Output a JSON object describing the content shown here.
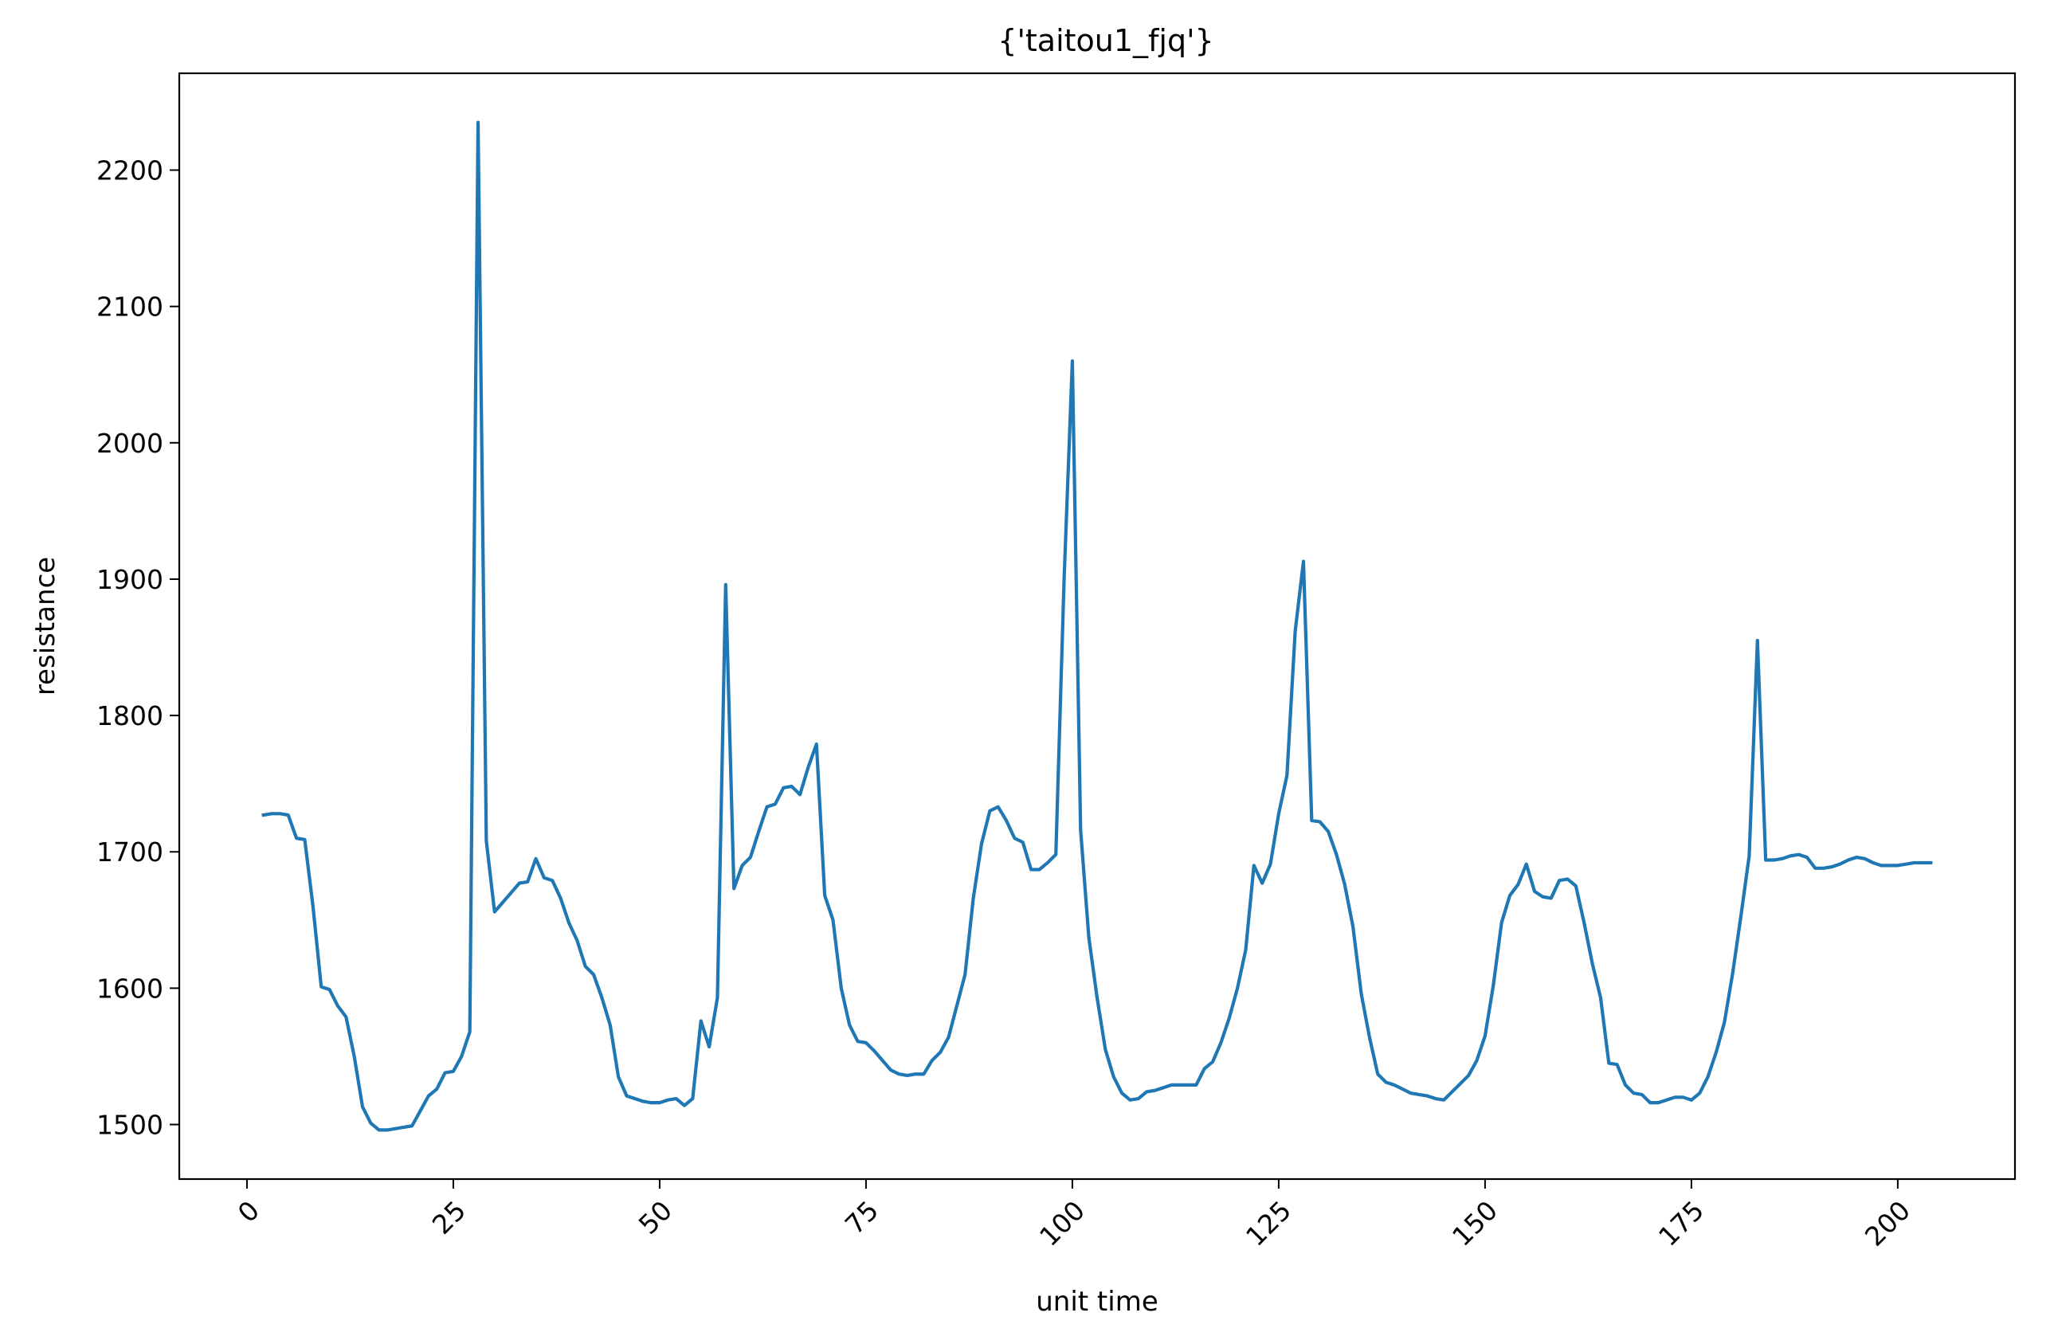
{
  "chart_data": {
    "type": "line",
    "title": "{'taitou1_fjq'}",
    "xlabel": "unit time",
    "ylabel": "resistance",
    "xlim": [
      -8.2,
      214.2
    ],
    "ylim": [
      1460,
      2271
    ],
    "x_ticks": [
      0,
      25,
      50,
      75,
      100,
      125,
      150,
      175,
      200
    ],
    "y_ticks": [
      1500,
      1600,
      1700,
      1800,
      1900,
      2000,
      2100,
      2200
    ],
    "x_tick_rotation": 45,
    "grid": false,
    "legend": "none",
    "series": [
      {
        "color": "#1f77b4",
        "x": [
          2,
          3,
          4,
          5,
          6,
          7,
          8,
          9,
          10,
          11,
          12,
          13,
          14,
          15,
          16,
          17,
          18,
          19,
          20,
          21,
          22,
          23,
          24,
          25,
          26,
          27,
          28,
          29,
          30,
          31,
          32,
          33,
          34,
          35,
          36,
          37,
          38,
          39,
          40,
          41,
          42,
          43,
          44,
          45,
          46,
          47,
          48,
          49,
          50,
          51,
          52,
          53,
          54,
          55,
          56,
          57,
          58,
          59,
          60,
          61,
          62,
          63,
          64,
          65,
          66,
          67,
          68,
          69,
          70,
          71,
          72,
          73,
          74,
          75,
          76,
          77,
          78,
          79,
          80,
          81,
          82,
          83,
          84,
          85,
          86,
          87,
          88,
          89,
          90,
          91,
          92,
          93,
          94,
          95,
          96,
          97,
          98,
          99,
          100,
          101,
          102,
          103,
          104,
          105,
          106,
          107,
          108,
          109,
          110,
          111,
          112,
          113,
          114,
          115,
          116,
          117,
          118,
          119,
          120,
          121,
          122,
          123,
          124,
          125,
          126,
          127,
          128,
          129,
          130,
          131,
          132,
          133,
          134,
          135,
          136,
          137,
          138,
          139,
          140,
          141,
          142,
          143,
          144,
          145,
          146,
          147,
          148,
          149,
          150,
          151,
          152,
          153,
          154,
          155,
          156,
          157,
          158,
          159,
          160,
          161,
          162,
          163,
          164,
          165,
          166,
          167,
          168,
          169,
          170,
          171,
          172,
          173,
          174,
          175,
          176,
          177,
          178,
          179,
          180,
          181,
          182,
          183,
          184,
          185,
          186,
          187,
          188,
          189,
          190,
          191,
          192,
          193,
          194,
          195,
          196,
          197,
          198,
          199,
          200,
          201,
          202,
          203,
          204
        ],
        "y": [
          1727,
          1728,
          1728,
          1727,
          1710,
          1709,
          1660,
          1601,
          1599,
          1587,
          1579,
          1550,
          1513,
          1501,
          1496,
          1496,
          1497,
          1498,
          1499,
          1510,
          1521,
          1526,
          1538,
          1539,
          1550,
          1568,
          2235,
          1708,
          1656,
          1663,
          1670,
          1677,
          1678,
          1695,
          1681,
          1679,
          1666,
          1648,
          1635,
          1616,
          1610,
          1593,
          1573,
          1535,
          1521,
          1519,
          1517,
          1516,
          1516,
          1518,
          1519,
          1514,
          1519,
          1576,
          1557,
          1593,
          1896,
          1673,
          1690,
          1696,
          1715,
          1733,
          1735,
          1747,
          1748,
          1742,
          1762,
          1779,
          1668,
          1650,
          1600,
          1573,
          1561,
          1560,
          1554,
          1547,
          1540,
          1537,
          1536,
          1537,
          1537,
          1547,
          1553,
          1564,
          1587,
          1610,
          1666,
          1706,
          1730,
          1733,
          1723,
          1710,
          1707,
          1687,
          1687,
          1692,
          1698,
          1900,
          2060,
          1716,
          1637,
          1593,
          1555,
          1535,
          1523,
          1518,
          1519,
          1524,
          1525,
          1527,
          1529,
          1529,
          1529,
          1529,
          1541,
          1546,
          1560,
          1578,
          1600,
          1628,
          1690,
          1677,
          1691,
          1728,
          1756,
          1862,
          1913,
          1723,
          1722,
          1715,
          1698,
          1676,
          1645,
          1596,
          1564,
          1537,
          1531,
          1529,
          1526,
          1523,
          1522,
          1521,
          1519,
          1518,
          1524,
          1530,
          1536,
          1547,
          1565,
          1602,
          1648,
          1668,
          1676,
          1691,
          1671,
          1667,
          1666,
          1679,
          1680,
          1675,
          1648,
          1618,
          1593,
          1545,
          1544,
          1529,
          1523,
          1522,
          1516,
          1516,
          1518,
          1520,
          1520,
          1518,
          1523,
          1535,
          1553,
          1575,
          1611,
          1653,
          1697,
          1855,
          1694,
          1694,
          1695,
          1697,
          1698,
          1696,
          1688,
          1688,
          1689,
          1691,
          1694,
          1696,
          1695,
          1692,
          1690,
          1690,
          1690,
          1691,
          1692,
          1692,
          1692
        ]
      }
    ]
  }
}
